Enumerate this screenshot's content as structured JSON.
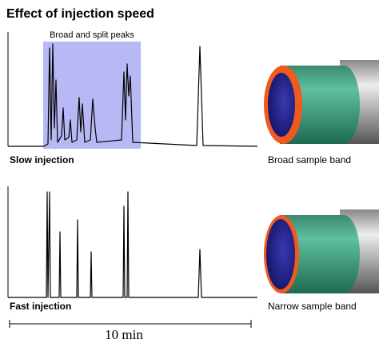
{
  "title": "Effect of injection speed",
  "panels": [
    {
      "trace_label": "Slow injection",
      "annotation": "Broad and split peaks",
      "band_label": "Broad sample band"
    },
    {
      "trace_label": "Fast injection",
      "band_label": "Narrow sample band"
    }
  ],
  "scale_label": "10 min"
}
